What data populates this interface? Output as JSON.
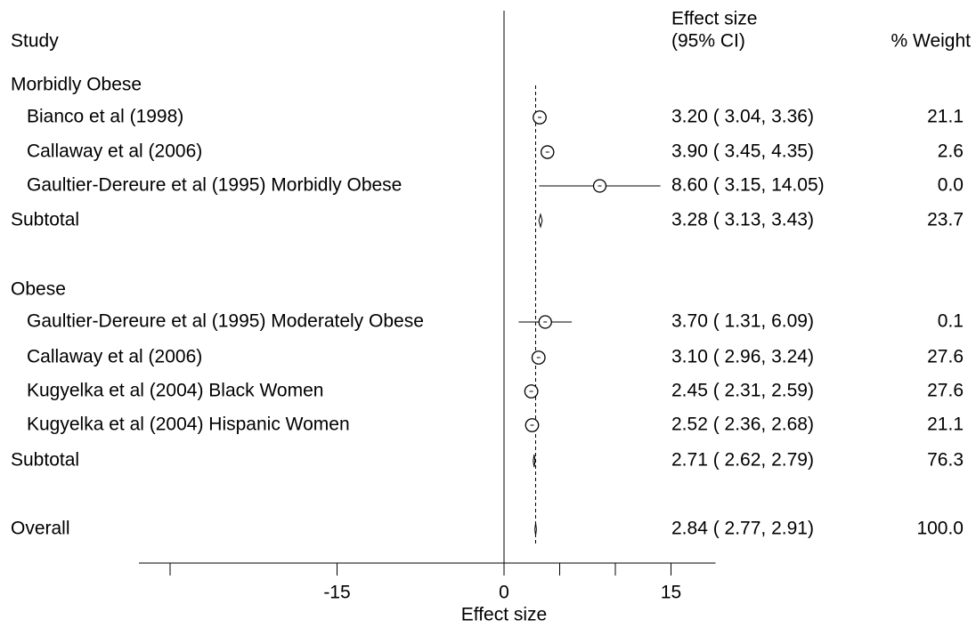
{
  "chart_data": {
    "type": "forest",
    "headers": {
      "study": "Study",
      "effect_line1": "Effect size",
      "effect_line2": "(95% CI)",
      "weight": "% Weight"
    },
    "groups": [
      {
        "name": "Morbidly Obese",
        "studies": [
          {
            "label": "Bianco et al (1998)",
            "es": 3.2,
            "lo": 3.04,
            "hi": 3.36,
            "ci_text": "3.20 ( 3.04, 3.36)",
            "weight": 21.1,
            "weight_text": "21.1"
          },
          {
            "label": "Callaway et al (2006)",
            "es": 3.9,
            "lo": 3.45,
            "hi": 4.35,
            "ci_text": "3.90 ( 3.45, 4.35)",
            "weight": 2.6,
            "weight_text": "2.6"
          },
          {
            "label": "Gaultier-Dereure et al (1995) Morbidly Obese",
            "es": 8.6,
            "lo": 3.15,
            "hi": 14.05,
            "ci_text": "8.60 ( 3.15, 14.05)",
            "weight": 0.0,
            "weight_text": "0.0"
          }
        ],
        "subtotal": {
          "label": "Subtotal",
          "es": 3.28,
          "lo": 3.13,
          "hi": 3.43,
          "ci_text": "3.28 ( 3.13, 3.43)",
          "weight": 23.7,
          "weight_text": "23.7"
        }
      },
      {
        "name": "Obese",
        "studies": [
          {
            "label": "Gaultier-Dereure et al (1995) Moderately Obese",
            "es": 3.7,
            "lo": 1.31,
            "hi": 6.09,
            "ci_text": "3.70 ( 1.31, 6.09)",
            "weight": 0.1,
            "weight_text": "0.1"
          },
          {
            "label": "Callaway et al (2006)",
            "es": 3.1,
            "lo": 2.96,
            "hi": 3.24,
            "ci_text": "3.10 ( 2.96, 3.24)",
            "weight": 27.6,
            "weight_text": "27.6"
          },
          {
            "label": "Kugyelka et al (2004) Black Women",
            "es": 2.45,
            "lo": 2.31,
            "hi": 2.59,
            "ci_text": "2.45 ( 2.31, 2.59)",
            "weight": 27.6,
            "weight_text": "27.6"
          },
          {
            "label": "Kugyelka et al (2004) Hispanic Women",
            "es": 2.52,
            "lo": 2.36,
            "hi": 2.68,
            "ci_text": "2.52 ( 2.36, 2.68)",
            "weight": 21.1,
            "weight_text": "21.1"
          }
        ],
        "subtotal": {
          "label": "Subtotal",
          "es": 2.71,
          "lo": 2.62,
          "hi": 2.79,
          "ci_text": "2.71 ( 2.62, 2.79)",
          "weight": 76.3,
          "weight_text": "76.3"
        }
      }
    ],
    "overall": {
      "label": "Overall",
      "es": 2.84,
      "lo": 2.77,
      "hi": 2.91,
      "ci_text": "2.84 ( 2.77, 2.91)",
      "weight": 100.0,
      "weight_text": "100.0"
    },
    "x_axis": {
      "label": "Effect size",
      "range": [
        -34,
        19
      ],
      "major_ticks": [
        -30,
        -15,
        0,
        5,
        10,
        15
      ],
      "tick_labels": [
        {
          "value": -15,
          "text": "-15"
        },
        {
          "value": 0,
          "text": "0"
        },
        {
          "value": 15,
          "text": "15"
        }
      ],
      "null_line": 0,
      "reference_line": 2.84
    }
  }
}
